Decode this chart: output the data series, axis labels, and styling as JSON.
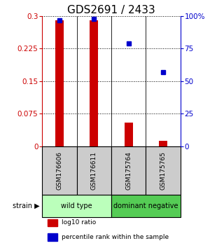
{
  "title": "GDS2691 / 2433",
  "samples": [
    "GSM176606",
    "GSM176611",
    "GSM175764",
    "GSM175765"
  ],
  "log10_ratio": [
    0.29,
    0.29,
    0.055,
    0.013
  ],
  "percentile_rank": [
    97,
    98,
    79,
    57
  ],
  "left_yticks": [
    0,
    0.075,
    0.15,
    0.225,
    0.3
  ],
  "left_yticklabels": [
    "0",
    "0.075",
    "0.15",
    "0.225",
    "0.3"
  ],
  "right_yticks": [
    0,
    25,
    50,
    75,
    100
  ],
  "right_yticklabels": [
    "0",
    "25",
    "50",
    "75",
    "100%"
  ],
  "ylim_left": [
    0,
    0.3
  ],
  "ylim_right": [
    0,
    100
  ],
  "bar_color": "#cc0000",
  "dot_color": "#0000cc",
  "groups": [
    {
      "label": "wild type",
      "start": 0,
      "end": 2,
      "color": "#bbffbb"
    },
    {
      "label": "dominant negative",
      "start": 2,
      "end": 4,
      "color": "#55cc55"
    }
  ],
  "strain_label": "strain",
  "legend_items": [
    {
      "color": "#cc0000",
      "label": "log10 ratio"
    },
    {
      "color": "#0000cc",
      "label": "percentile rank within the sample"
    }
  ],
  "bg_color": "#ffffff",
  "sample_box_color": "#cccccc",
  "title_fontsize": 11,
  "tick_fontsize": 7.5,
  "bar_width": 0.25
}
